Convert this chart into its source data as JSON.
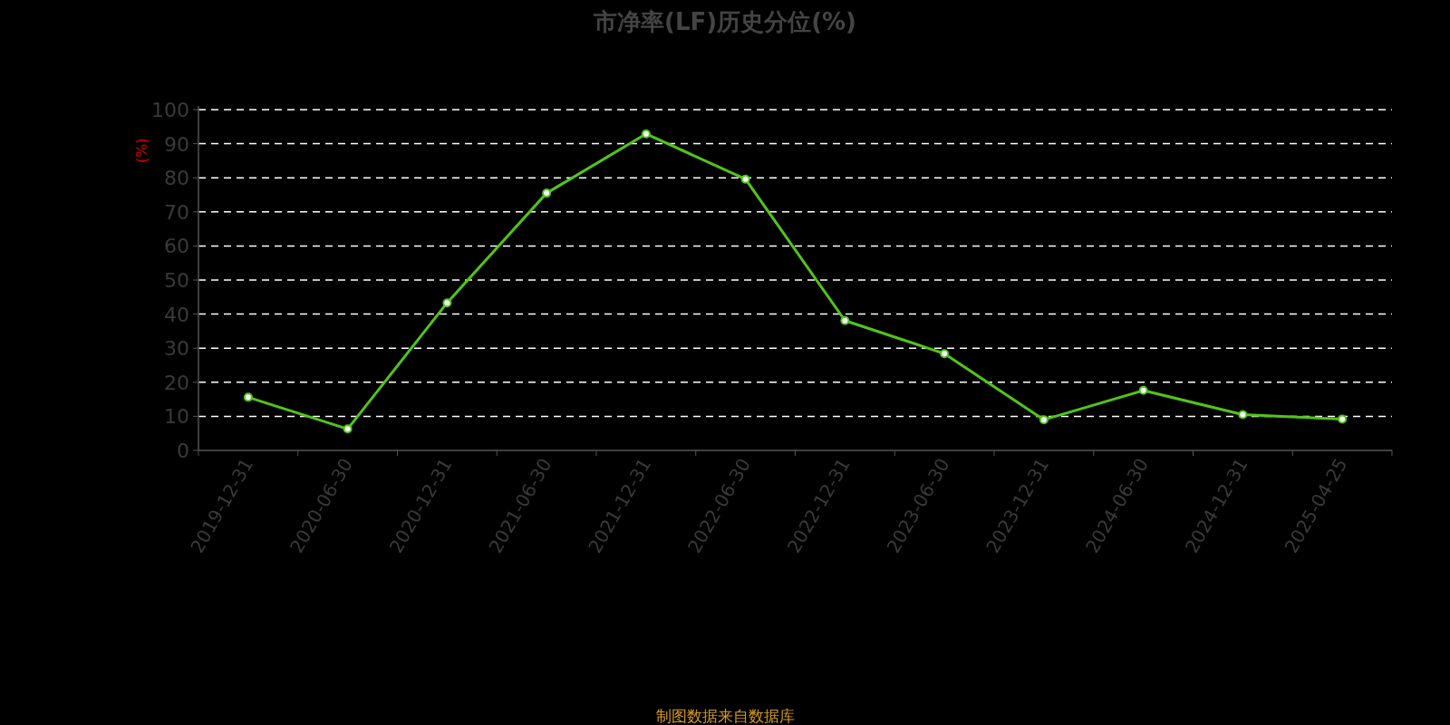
{
  "chart_data": {
    "type": "line",
    "title": "市净率(LF)历史分位(%)",
    "ylabel": "(%)",
    "annotations": [
      "制图数据来自数据库"
    ],
    "categories": [
      "2019-12-31",
      "2020-06-30",
      "2020-12-31",
      "2021-06-30",
      "2021-12-31",
      "2022-06-30",
      "2022-12-31",
      "2023-06-30",
      "2023-12-31",
      "2024-06-30",
      "2024-12-31",
      "2025-04-25"
    ],
    "values": [
      15.6,
      6.3,
      43.3,
      75.5,
      92.9,
      79.6,
      38.1,
      28.4,
      9.0,
      17.6,
      10.5,
      9.2
    ],
    "color": "#52c41a",
    "ylim": [
      0,
      100
    ],
    "yticks": [
      0,
      10,
      20,
      30,
      40,
      50,
      60,
      70,
      80,
      90,
      100
    ],
    "grid": "y",
    "marker": "circle"
  }
}
